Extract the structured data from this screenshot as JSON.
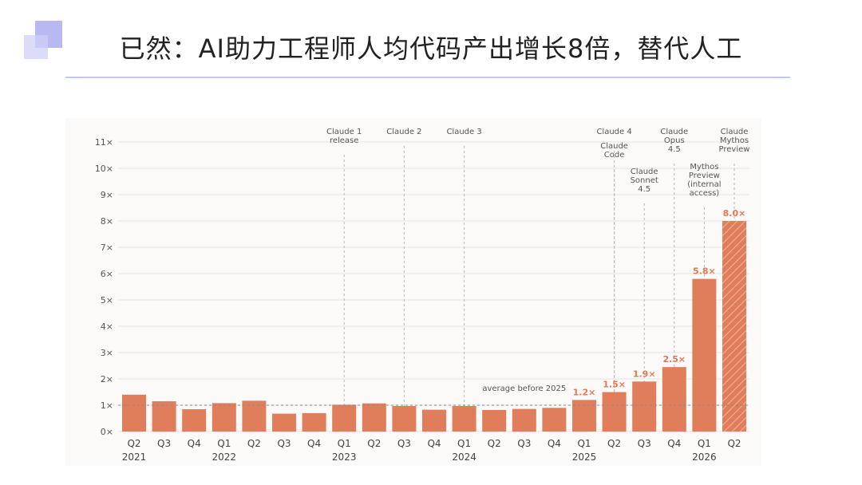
{
  "header": {
    "title": "已然：AI助力工程师人均代码产出增长8倍，替代人工"
  },
  "chart_data": {
    "type": "bar",
    "yticks": [
      0,
      1,
      2,
      3,
      4,
      5,
      6,
      7,
      8,
      9,
      10,
      11
    ],
    "ytick_suffix": "×",
    "ylim": [
      0,
      11
    ],
    "bar_color": "#e07e5c",
    "highlight_color": "#e07a55",
    "categories": [
      {
        "q": "Q2",
        "year": "2021"
      },
      {
        "q": "Q3",
        "year": ""
      },
      {
        "q": "Q4",
        "year": ""
      },
      {
        "q": "Q1",
        "year": "2022"
      },
      {
        "q": "Q2",
        "year": ""
      },
      {
        "q": "Q3",
        "year": ""
      },
      {
        "q": "Q4",
        "year": ""
      },
      {
        "q": "Q1",
        "year": "2023"
      },
      {
        "q": "Q2",
        "year": ""
      },
      {
        "q": "Q3",
        "year": ""
      },
      {
        "q": "Q4",
        "year": ""
      },
      {
        "q": "Q1",
        "year": "2024"
      },
      {
        "q": "Q2",
        "year": ""
      },
      {
        "q": "Q3",
        "year": ""
      },
      {
        "q": "Q4",
        "year": ""
      },
      {
        "q": "Q1",
        "year": "2025"
      },
      {
        "q": "Q2",
        "year": ""
      },
      {
        "q": "Q3",
        "year": ""
      },
      {
        "q": "Q4",
        "year": ""
      },
      {
        "q": "Q1",
        "year": "2026"
      },
      {
        "q": "Q2",
        "year": ""
      }
    ],
    "values": [
      1.4,
      1.15,
      0.85,
      1.08,
      1.17,
      0.68,
      0.7,
      1.02,
      1.07,
      0.97,
      0.83,
      0.97,
      0.82,
      0.86,
      0.9,
      1.2,
      1.5,
      1.9,
      2.45,
      5.8,
      8.0
    ],
    "value_labels": [
      {
        "index": 15,
        "text": "1.2×"
      },
      {
        "index": 16,
        "text": "1.5×"
      },
      {
        "index": 17,
        "text": "1.9×"
      },
      {
        "index": 18,
        "text": "2.5×"
      },
      {
        "index": 19,
        "text": "5.8×"
      },
      {
        "index": 20,
        "text": "8.0×"
      }
    ],
    "hatched_index": 20,
    "reference_line": {
      "value": 1.0,
      "label": "average before 2025"
    },
    "annotations": [
      {
        "index": 7,
        "lines": [
          "Claude 1",
          "release"
        ],
        "row": 0
      },
      {
        "index": 9,
        "lines": [
          "Claude 2"
        ],
        "row": 0
      },
      {
        "index": 11,
        "lines": [
          "Claude 3"
        ],
        "row": 0
      },
      {
        "index": 16,
        "lines": [
          "Claude 4"
        ],
        "row": 0
      },
      {
        "index": 16,
        "lines": [
          "Claude",
          "Code"
        ],
        "row": 1
      },
      {
        "index": 17,
        "lines": [
          "Claude",
          "Sonnet",
          "4.5"
        ],
        "row": 2
      },
      {
        "index": 18,
        "lines": [
          "Claude",
          "Opus",
          "4.5"
        ],
        "row": 0
      },
      {
        "index": 19,
        "lines": [
          "Mythos",
          "Preview",
          "(internal",
          "access)"
        ],
        "row": 3
      },
      {
        "index": 20,
        "lines": [
          "Claude",
          "Mythos",
          "Preview"
        ],
        "row": 0
      }
    ]
  }
}
